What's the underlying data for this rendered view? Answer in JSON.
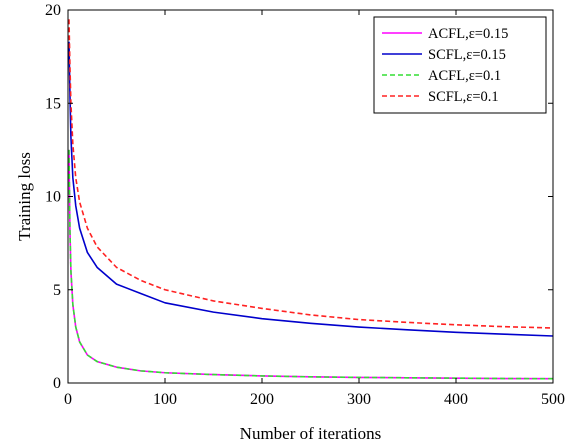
{
  "chart_data": {
    "type": "line",
    "xlabel": "Number of iterations",
    "ylabel": "Training loss",
    "xlim": [
      0,
      500
    ],
    "ylim": [
      0,
      20
    ],
    "xticks": [
      0,
      100,
      200,
      300,
      400,
      500
    ],
    "yticks": [
      0,
      5,
      10,
      15,
      20
    ],
    "grid": false,
    "legend_position": "top-right",
    "x": [
      1,
      2,
      3,
      5,
      8,
      12,
      20,
      30,
      50,
      75,
      100,
      150,
      200,
      250,
      300,
      350,
      400,
      450,
      500
    ],
    "series": [
      {
        "name": "ACFL,ε=0.15",
        "color": "#ff00ff",
        "dash": "solid",
        "values": [
          12.5,
          8.2,
          6.0,
          4.2,
          3.0,
          2.2,
          1.5,
          1.15,
          0.85,
          0.65,
          0.55,
          0.45,
          0.38,
          0.33,
          0.3,
          0.28,
          0.26,
          0.24,
          0.23
        ]
      },
      {
        "name": "SCFL,ε=0.15",
        "color": "#0000cc",
        "dash": "solid",
        "values": [
          18.3,
          15.5,
          13.2,
          11.0,
          9.5,
          8.3,
          7.0,
          6.2,
          5.3,
          4.8,
          4.3,
          3.8,
          3.45,
          3.2,
          3.0,
          2.85,
          2.72,
          2.62,
          2.52
        ]
      },
      {
        "name": "ACFL,ε=0.1",
        "color": "#33dd33",
        "dash": "dashed",
        "values": [
          12.5,
          8.2,
          6.0,
          4.2,
          3.0,
          2.2,
          1.5,
          1.15,
          0.85,
          0.65,
          0.55,
          0.45,
          0.38,
          0.33,
          0.3,
          0.28,
          0.26,
          0.24,
          0.23
        ]
      },
      {
        "name": "SCFL,ε=0.1",
        "color": "#ff2222",
        "dash": "dashed",
        "values": [
          19.5,
          17.0,
          15.0,
          12.8,
          11.0,
          9.7,
          8.3,
          7.3,
          6.2,
          5.5,
          5.0,
          4.4,
          4.0,
          3.65,
          3.4,
          3.25,
          3.12,
          3.02,
          2.95
        ]
      }
    ]
  }
}
